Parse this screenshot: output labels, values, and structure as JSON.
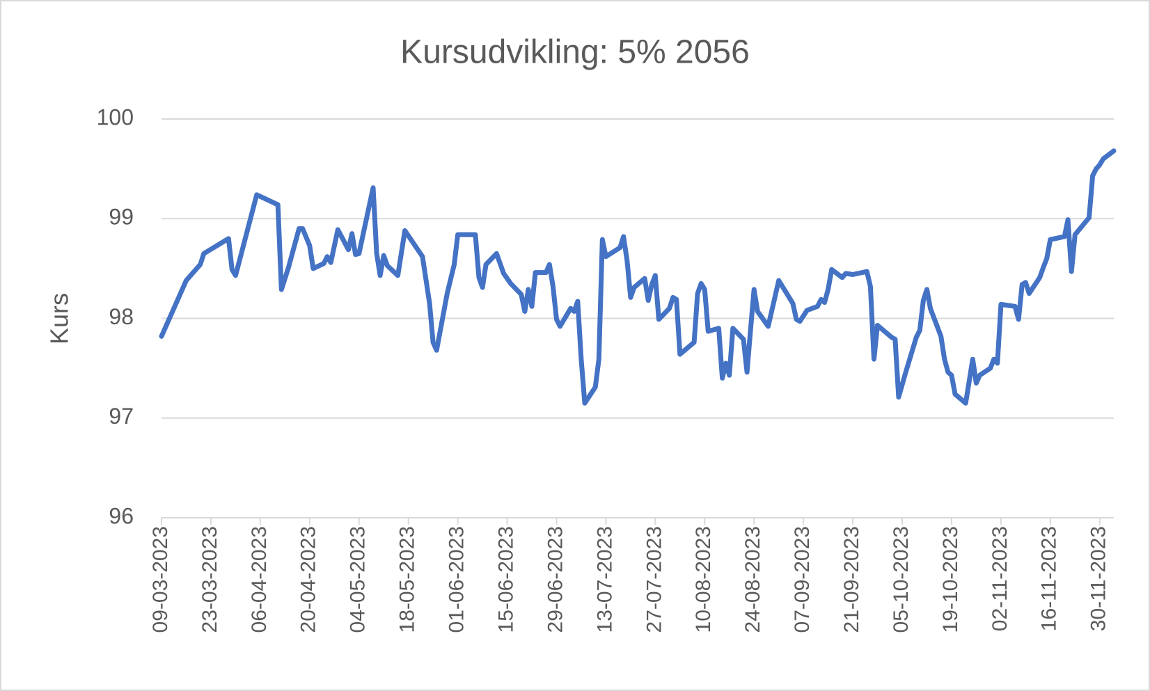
{
  "chart_data": {
    "type": "line",
    "title": "Kursudvikling: 5% 2056",
    "y_label": "Kurs",
    "color": "#4472c4",
    "x": [
      "09-03-2023",
      "16-03-2023",
      "20-03-2023",
      "21-03-2023",
      "28-03-2023",
      "29-03-2023",
      "30-03-2023",
      "05-04-2023",
      "11-04-2023",
      "12-04-2023",
      "14-04-2023",
      "17-04-2023",
      "18-04-2023",
      "20-04-2023",
      "21-04-2023",
      "24-04-2023",
      "25-04-2023",
      "26-04-2023",
      "28-04-2023",
      "01-05-2023",
      "02-05-2023",
      "03-05-2023",
      "04-05-2023",
      "08-05-2023",
      "09-05-2023",
      "10-05-2023",
      "11-05-2023",
      "12-05-2023",
      "15-05-2023",
      "17-05-2023",
      "22-05-2023",
      "24-05-2023",
      "25-05-2023",
      "26-05-2023",
      "29-05-2023",
      "31-05-2023",
      "01-06-2023",
      "06-06-2023",
      "07-06-2023",
      "08-06-2023",
      "09-06-2023",
      "12-06-2023",
      "14-06-2023",
      "16-06-2023",
      "19-06-2023",
      "20-06-2023",
      "21-06-2023",
      "22-06-2023",
      "23-06-2023",
      "26-06-2023",
      "27-06-2023",
      "28-06-2023",
      "29-06-2023",
      "30-06-2023",
      "03-07-2023",
      "04-07-2023",
      "05-07-2023",
      "06-07-2023",
      "07-07-2023",
      "10-07-2023",
      "11-07-2023",
      "12-07-2023",
      "13-07-2023",
      "17-07-2023",
      "18-07-2023",
      "19-07-2023",
      "20-07-2023",
      "21-07-2023",
      "24-07-2023",
      "25-07-2023",
      "26-07-2023",
      "27-07-2023",
      "28-07-2023",
      "31-07-2023",
      "01-08-2023",
      "02-08-2023",
      "03-08-2023",
      "07-08-2023",
      "08-08-2023",
      "09-08-2023",
      "10-08-2023",
      "11-08-2023",
      "14-08-2023",
      "15-08-2023",
      "16-08-2023",
      "17-08-2023",
      "18-08-2023",
      "21-08-2023",
      "22-08-2023",
      "23-08-2023",
      "24-08-2023",
      "25-08-2023",
      "28-08-2023",
      "31-08-2023",
      "04-09-2023",
      "05-09-2023",
      "06-09-2023",
      "08-09-2023",
      "11-09-2023",
      "12-09-2023",
      "13-09-2023",
      "14-09-2023",
      "15-09-2023",
      "18-09-2023",
      "19-09-2023",
      "21-09-2023",
      "25-09-2023",
      "26-09-2023",
      "27-09-2023",
      "28-09-2023",
      "02-10-2023",
      "03-10-2023",
      "04-10-2023",
      "06-10-2023",
      "09-10-2023",
      "10-10-2023",
      "11-10-2023",
      "12-10-2023",
      "13-10-2023",
      "16-10-2023",
      "17-10-2023",
      "18-10-2023",
      "19-10-2023",
      "20-10-2023",
      "23-10-2023",
      "24-10-2023",
      "25-10-2023",
      "26-10-2023",
      "27-10-2023",
      "30-10-2023",
      "31-10-2023",
      "01-11-2023",
      "02-11-2023",
      "06-11-2023",
      "07-11-2023",
      "08-11-2023",
      "09-11-2023",
      "10-11-2023",
      "13-11-2023",
      "14-11-2023",
      "15-11-2023",
      "16-11-2023",
      "20-11-2023",
      "21-11-2023",
      "22-11-2023",
      "23-11-2023",
      "27-11-2023",
      "28-11-2023",
      "29-11-2023",
      "30-11-2023",
      "01-12-2023",
      "04-12-2023"
    ],
    "values": [
      97.82,
      98.38,
      98.54,
      98.65,
      98.8,
      98.49,
      98.43,
      99.24,
      99.14,
      98.29,
      98.51,
      98.9,
      98.9,
      98.73,
      98.5,
      98.55,
      98.62,
      98.56,
      98.89,
      98.69,
      98.85,
      98.64,
      98.65,
      99.31,
      98.65,
      98.43,
      98.63,
      98.53,
      98.43,
      98.88,
      98.62,
      98.15,
      97.76,
      97.68,
      98.25,
      98.54,
      98.84,
      98.84,
      98.41,
      98.31,
      98.54,
      98.65,
      98.45,
      98.35,
      98.24,
      98.07,
      98.29,
      98.12,
      98.46,
      98.46,
      98.54,
      98.32,
      97.99,
      97.92,
      98.1,
      98.07,
      98.17,
      97.59,
      97.15,
      97.31,
      97.59,
      98.79,
      98.62,
      98.71,
      98.82,
      98.58,
      98.21,
      98.31,
      98.4,
      98.18,
      98.34,
      98.43,
      97.99,
      98.1,
      98.21,
      98.19,
      97.64,
      97.76,
      98.25,
      98.35,
      98.29,
      97.87,
      97.9,
      97.4,
      97.55,
      97.43,
      97.9,
      97.79,
      97.46,
      97.88,
      98.29,
      98.07,
      97.92,
      98.38,
      98.15,
      97.99,
      97.97,
      98.08,
      98.12,
      98.19,
      98.16,
      98.29,
      98.49,
      98.41,
      98.45,
      98.44,
      98.47,
      98.32,
      97.59,
      97.93,
      97.81,
      97.79,
      97.21,
      97.46,
      97.81,
      97.88,
      98.18,
      98.29,
      98.1,
      97.82,
      97.59,
      97.46,
      97.43,
      97.24,
      97.15,
      97.37,
      97.59,
      97.35,
      97.43,
      97.5,
      97.59,
      97.55,
      98.14,
      98.12,
      97.99,
      98.34,
      98.36,
      98.25,
      98.41,
      98.51,
      98.6,
      98.79,
      98.82,
      98.99,
      98.47,
      98.84,
      99.01,
      99.43,
      99.5,
      99.54,
      99.6,
      99.68
    ],
    "xlim": [
      "09-03-2023",
      "04-12-2023"
    ],
    "xticks": [
      "09-03-2023",
      "23-03-2023",
      "06-04-2023",
      "20-04-2023",
      "04-05-2023",
      "18-05-2023",
      "01-06-2023",
      "15-06-2023",
      "29-06-2023",
      "13-07-2023",
      "27-07-2023",
      "10-08-2023",
      "24-08-2023",
      "07-09-2023",
      "21-09-2023",
      "05-10-2023",
      "19-10-2023",
      "02-11-2023",
      "16-11-2023",
      "30-11-2023"
    ],
    "ylim": [
      96,
      100
    ],
    "yticks": [
      96,
      97,
      98,
      99,
      100
    ],
    "grid": true
  }
}
